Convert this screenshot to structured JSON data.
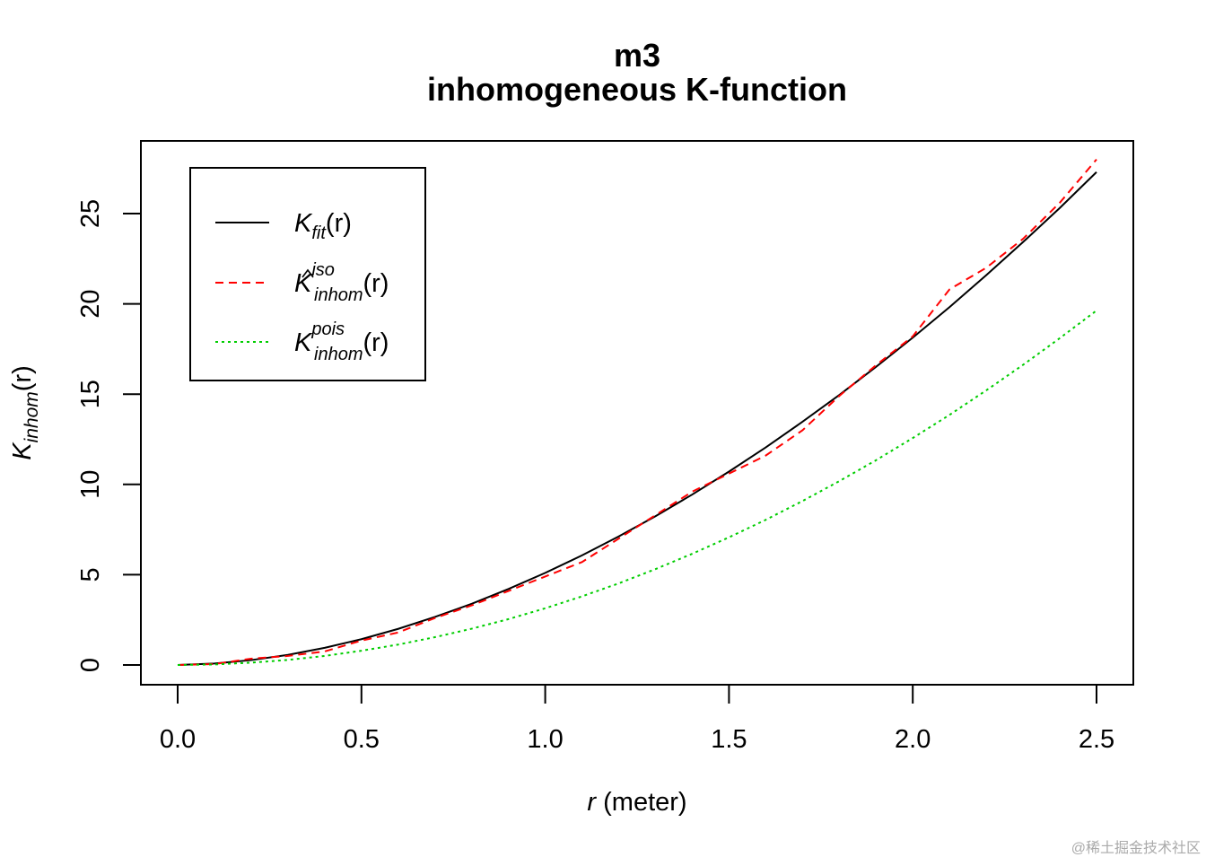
{
  "chart_data": {
    "type": "line",
    "title": "m3",
    "subtitle": "inhomogeneous K-function",
    "xlabel": {
      "var": "r",
      "unit": "(meter)"
    },
    "ylabel": {
      "main": "K",
      "sub": "inhom",
      "arg": "(r)"
    },
    "xlim": [
      -0.1,
      2.6
    ],
    "ylim": [
      -1.1,
      29
    ],
    "xticks": [
      "0.0",
      "0.5",
      "1.0",
      "1.5",
      "2.0",
      "2.5"
    ],
    "yticks": [
      "0",
      "5",
      "10",
      "15",
      "20",
      "25"
    ],
    "x": [
      0,
      0.1,
      0.2,
      0.3,
      0.4,
      0.5,
      0.6,
      0.7,
      0.8,
      0.9,
      1.0,
      1.1,
      1.2,
      1.3,
      1.4,
      1.5,
      1.6,
      1.7,
      1.8,
      1.9,
      2.0,
      2.1,
      2.2,
      2.3,
      2.4,
      2.5
    ],
    "series": [
      {
        "name": "K_fit(r)",
        "color": "#000000",
        "dash": "solid",
        "legend": {
          "main": "K",
          "sub": "fit",
          "sup": "",
          "hat": false,
          "arg": "(r)"
        },
        "values": [
          0,
          0.08,
          0.27,
          0.56,
          0.95,
          1.43,
          2.0,
          2.66,
          3.39,
          4.21,
          5.1,
          6.07,
          7.12,
          8.24,
          9.44,
          10.71,
          12.05,
          13.47,
          14.95,
          16.51,
          18.13,
          19.82,
          21.59,
          23.42,
          25.31,
          27.3
        ]
      },
      {
        "name": "K^iso_inhom(r)",
        "color": "#ff0000",
        "dash": "dashed",
        "legend": {
          "main": "K",
          "sub": "inhom",
          "sup": "iso",
          "hat": true,
          "arg": "(r)"
        },
        "values": [
          0,
          0.05,
          0.35,
          0.5,
          0.75,
          1.35,
          1.8,
          2.6,
          3.3,
          4.1,
          4.9,
          5.7,
          7.0,
          8.3,
          9.6,
          10.6,
          11.6,
          13.0,
          14.9,
          16.6,
          18.2,
          20.8,
          22.0,
          23.6,
          25.6,
          28.0
        ]
      },
      {
        "name": "K^pois_inhom(r)",
        "color": "#00cd00",
        "dash": "dotted",
        "legend": {
          "main": "K",
          "sub": "inhom",
          "sup": "pois",
          "hat": false,
          "arg": "(r)"
        },
        "values": [
          0,
          0.03,
          0.13,
          0.28,
          0.5,
          0.79,
          1.13,
          1.54,
          2.01,
          2.54,
          3.14,
          3.8,
          4.52,
          5.31,
          6.16,
          7.07,
          8.04,
          9.08,
          10.18,
          11.34,
          12.57,
          13.85,
          15.21,
          16.62,
          18.1,
          19.63
        ]
      }
    ],
    "legend_position": "top-left",
    "grid": false
  },
  "watermark": "@稀土掘金技术社区"
}
